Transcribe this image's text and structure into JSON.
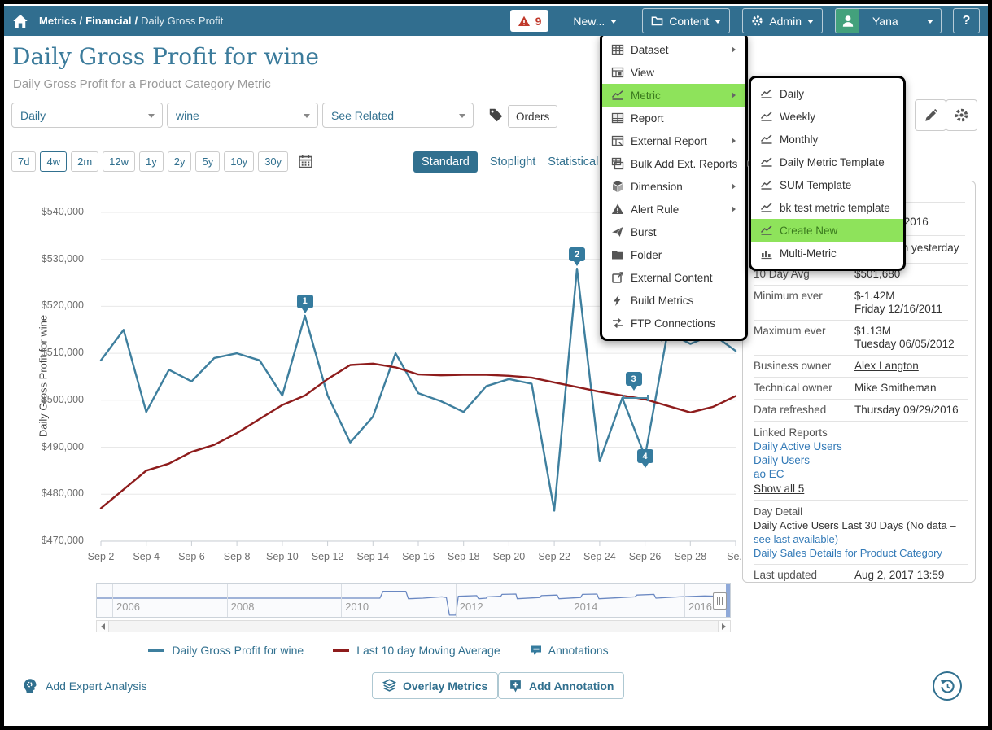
{
  "nav": {
    "breadcrumb": [
      "Metrics",
      "Financial",
      "Daily Gross Profit"
    ],
    "separator": "/",
    "alert_count": "9",
    "new_label": "New...",
    "content_label": "Content",
    "admin_label": "Admin",
    "user_name": "Yana",
    "help_label": "?"
  },
  "header": {
    "title": "Daily Gross Profit for wine",
    "subtitle": "Daily Gross Profit for a Product Category Metric"
  },
  "filters": {
    "period": "Daily",
    "item": "wine",
    "related": "See Related",
    "tag_label": "Orders"
  },
  "toolbar": {
    "ranges": [
      "7d",
      "4w",
      "2m",
      "12w",
      "1y",
      "2y",
      "5y",
      "10y",
      "30y"
    ],
    "selected_range": "4w",
    "tabs": [
      "Standard",
      "Stoplight",
      "Statistical"
    ],
    "selected_tab": "Standard"
  },
  "new_menu": {
    "items": [
      {
        "label": "Dataset",
        "icon": "grid",
        "submenu": true
      },
      {
        "label": "View",
        "icon": "view",
        "submenu": false
      },
      {
        "label": "Metric",
        "icon": "line",
        "submenu": true,
        "highlighted": true
      },
      {
        "label": "Report",
        "icon": "report",
        "submenu": false
      },
      {
        "label": "External Report",
        "icon": "extreport",
        "submenu": true
      },
      {
        "label": "Bulk Add Ext. Reports",
        "icon": "bulk",
        "submenu": true
      },
      {
        "label": "Dimension",
        "icon": "cube",
        "submenu": true
      },
      {
        "label": "Alert Rule",
        "icon": "alert",
        "submenu": true
      },
      {
        "label": "Burst",
        "icon": "plane",
        "submenu": false
      },
      {
        "label": "Folder",
        "icon": "folder",
        "submenu": false
      },
      {
        "label": "External Content",
        "icon": "external",
        "submenu": false
      },
      {
        "label": "Build Metrics",
        "icon": "bolt",
        "submenu": false
      },
      {
        "label": "FTP Connections",
        "icon": "ftp",
        "submenu": false
      }
    ]
  },
  "metric_submenu": {
    "items": [
      {
        "label": "Daily",
        "icon": "line"
      },
      {
        "label": "Weekly",
        "icon": "line"
      },
      {
        "label": "Monthly",
        "icon": "line"
      },
      {
        "label": "Daily Metric Template",
        "icon": "line"
      },
      {
        "label": "SUM Template",
        "icon": "line"
      },
      {
        "label": "bk test metric template",
        "icon": "line"
      },
      {
        "label": "Create New",
        "icon": "line",
        "highlighted": true
      },
      {
        "label": "Multi-Metric",
        "icon": "bars"
      }
    ]
  },
  "chart_data": {
    "type": "line",
    "ylabel": "Daily Gross Profit for wine",
    "y_ticks": [
      "$540,000",
      "$530,000",
      "$520,000",
      "$510,000",
      "$500,000",
      "$490,000",
      "$480,000",
      "$470,000"
    ],
    "ylim_usd": [
      470000,
      545000
    ],
    "x_interval": "daily",
    "x_start": "Sep 2",
    "x_tick_labels": [
      "Sep 2",
      "Sep 4",
      "Sep 6",
      "Sep 8",
      "Sep 10",
      "Sep 12",
      "Sep 14",
      "Sep 16",
      "Sep 18",
      "Sep 20",
      "Sep 22",
      "Sep 24",
      "Sep 26",
      "Sep 28",
      "Se..."
    ],
    "grid": true,
    "series": [
      {
        "name": "Daily Gross Profit for wine",
        "color": "#3e7f9e",
        "values_k_usd": [
          508.5,
          515,
          497.5,
          506.5,
          504,
          509,
          510,
          508.5,
          501,
          518,
          501,
          491,
          496.5,
          510,
          501.5,
          499.8,
          497.5,
          503,
          504.5,
          503.5,
          476.5,
          528,
          487,
          500.5,
          488,
          514.5,
          512,
          514,
          510.5
        ]
      },
      {
        "name": "Last 10 day Moving Average",
        "color": "#8e1c1c",
        "values_k_usd": [
          477,
          481,
          485,
          486.5,
          489,
          490.5,
          493,
          496,
          499,
          501,
          504.5,
          507.5,
          507.8,
          507,
          505.5,
          505.3,
          505.4,
          505.4,
          505.2,
          504.8,
          503.8,
          502.8,
          501.8,
          501,
          500.2,
          498.8,
          497.4,
          498.6,
          500.9
        ]
      }
    ],
    "annotations": [
      {
        "label": "1",
        "day_index": 9,
        "value_k": 518
      },
      {
        "label": "2",
        "day_index": 21,
        "value_k": 528
      },
      {
        "label": "3",
        "day_index": 23.5,
        "value_k": 501,
        "range": true
      },
      {
        "label": "4",
        "day_index": 24,
        "value_k": 488,
        "on_point": true
      }
    ]
  },
  "overview": {
    "years": [
      "2006",
      "2008",
      "2010",
      "2012",
      "2014",
      "2016"
    ],
    "points": [
      [
        0.0,
        0.42
      ],
      [
        0.447,
        0.42
      ],
      [
        0.452,
        0.2
      ],
      [
        0.488,
        0.2
      ],
      [
        0.492,
        0.44
      ],
      [
        0.515,
        0.42
      ],
      [
        0.545,
        0.38
      ],
      [
        0.552,
        0.4
      ],
      [
        0.557,
        0.97
      ],
      [
        0.567,
        0.97
      ],
      [
        0.571,
        0.36
      ],
      [
        0.6,
        0.34
      ],
      [
        0.603,
        0.44
      ],
      [
        0.615,
        0.42
      ],
      [
        0.617,
        0.38
      ],
      [
        0.638,
        0.36
      ],
      [
        0.64,
        0.3
      ],
      [
        0.662,
        0.29
      ],
      [
        0.664,
        0.44
      ],
      [
        0.7,
        0.4
      ],
      [
        0.702,
        0.34
      ],
      [
        0.727,
        0.32
      ],
      [
        0.73,
        0.44
      ],
      [
        0.764,
        0.4
      ],
      [
        0.767,
        0.3
      ],
      [
        0.79,
        0.29
      ],
      [
        0.793,
        0.44
      ],
      [
        0.85,
        0.38
      ],
      [
        0.853,
        0.32
      ],
      [
        0.88,
        0.3
      ],
      [
        0.883,
        0.42
      ],
      [
        0.92,
        0.38
      ],
      [
        0.96,
        0.35
      ],
      [
        1.0,
        0.37
      ]
    ]
  },
  "legend": {
    "items": [
      {
        "label": "Daily Gross Profit for wine",
        "swatch": "#3e7f9e"
      },
      {
        "label": "Last 10 day Moving Average",
        "swatch": "#8e1c1c"
      },
      {
        "label": "Annotations",
        "icon": "flag"
      }
    ]
  },
  "sidebar": {
    "clipped_fragments": [
      "/2016",
      "m yesterday"
    ],
    "stats": [
      {
        "label": "10 Day Avg",
        "value": "$501,680"
      },
      {
        "label": "Minimum ever",
        "value": "$-1.42M",
        "value2": "Friday 12/16/2011"
      },
      {
        "label": "Maximum ever",
        "value": "$1.13M",
        "value2": "Tuesday 06/05/2012"
      },
      {
        "label": "Business owner",
        "value": "Alex Langton",
        "link": true,
        "underline": true
      },
      {
        "label": "Technical owner",
        "value": "Mike Smitheman"
      },
      {
        "label": "Data refreshed",
        "value": "Thursday 09/29/2016"
      }
    ],
    "linked_reports": {
      "title": "Linked Reports",
      "links": [
        "Daily Active Users",
        "Daily Users",
        "ao EC"
      ],
      "show_all": "Show all 5"
    },
    "day_detail": {
      "title": "Day Detail",
      "text": "Daily Active Users Last 30 Days (No data – ",
      "text_link": "see last available)",
      "report_link": "Daily Sales Details for Product Category"
    },
    "last_updated_label": "Last updated",
    "last_updated_value": "Aug 2, 2017 13:59"
  },
  "footer": {
    "expert_label": "Add Expert Analysis",
    "overlay_label": "Overlay Metrics",
    "annotation_label": "Add Annotation"
  },
  "colors": {
    "navbar": "#316e8f",
    "accent": "#31708f",
    "chart_blue": "#3e7f9e",
    "chart_red": "#8e1c1c",
    "menu_highlight": "#8ee35b",
    "alert_red": "#c0392b"
  }
}
